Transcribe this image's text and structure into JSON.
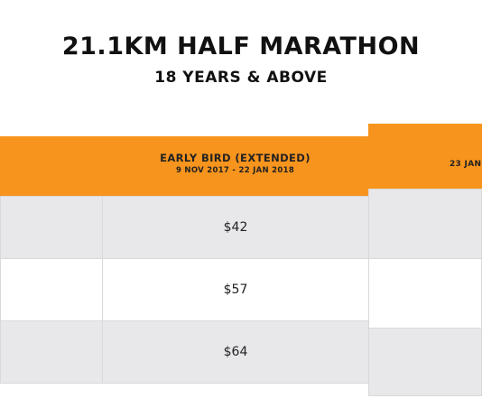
{
  "title": "21.1KM HALF MARATHON",
  "subtitle": "18 YEARS & ABOVE",
  "columns": [
    {
      "heading": "",
      "dates": ""
    },
    {
      "heading": "EARLY BIRD (EXTENDED)",
      "dates": "9 NOV 2017 - 22 JAN 2018"
    },
    {
      "heading": "",
      "dates": "23 JAN"
    }
  ],
  "rows": [
    {
      "price": "$42"
    },
    {
      "price": "$57"
    },
    {
      "price": "$64"
    }
  ],
  "colors": {
    "header": "#f7941d",
    "row_alt": "#e8e8ea",
    "border": "#d9d9d9"
  }
}
